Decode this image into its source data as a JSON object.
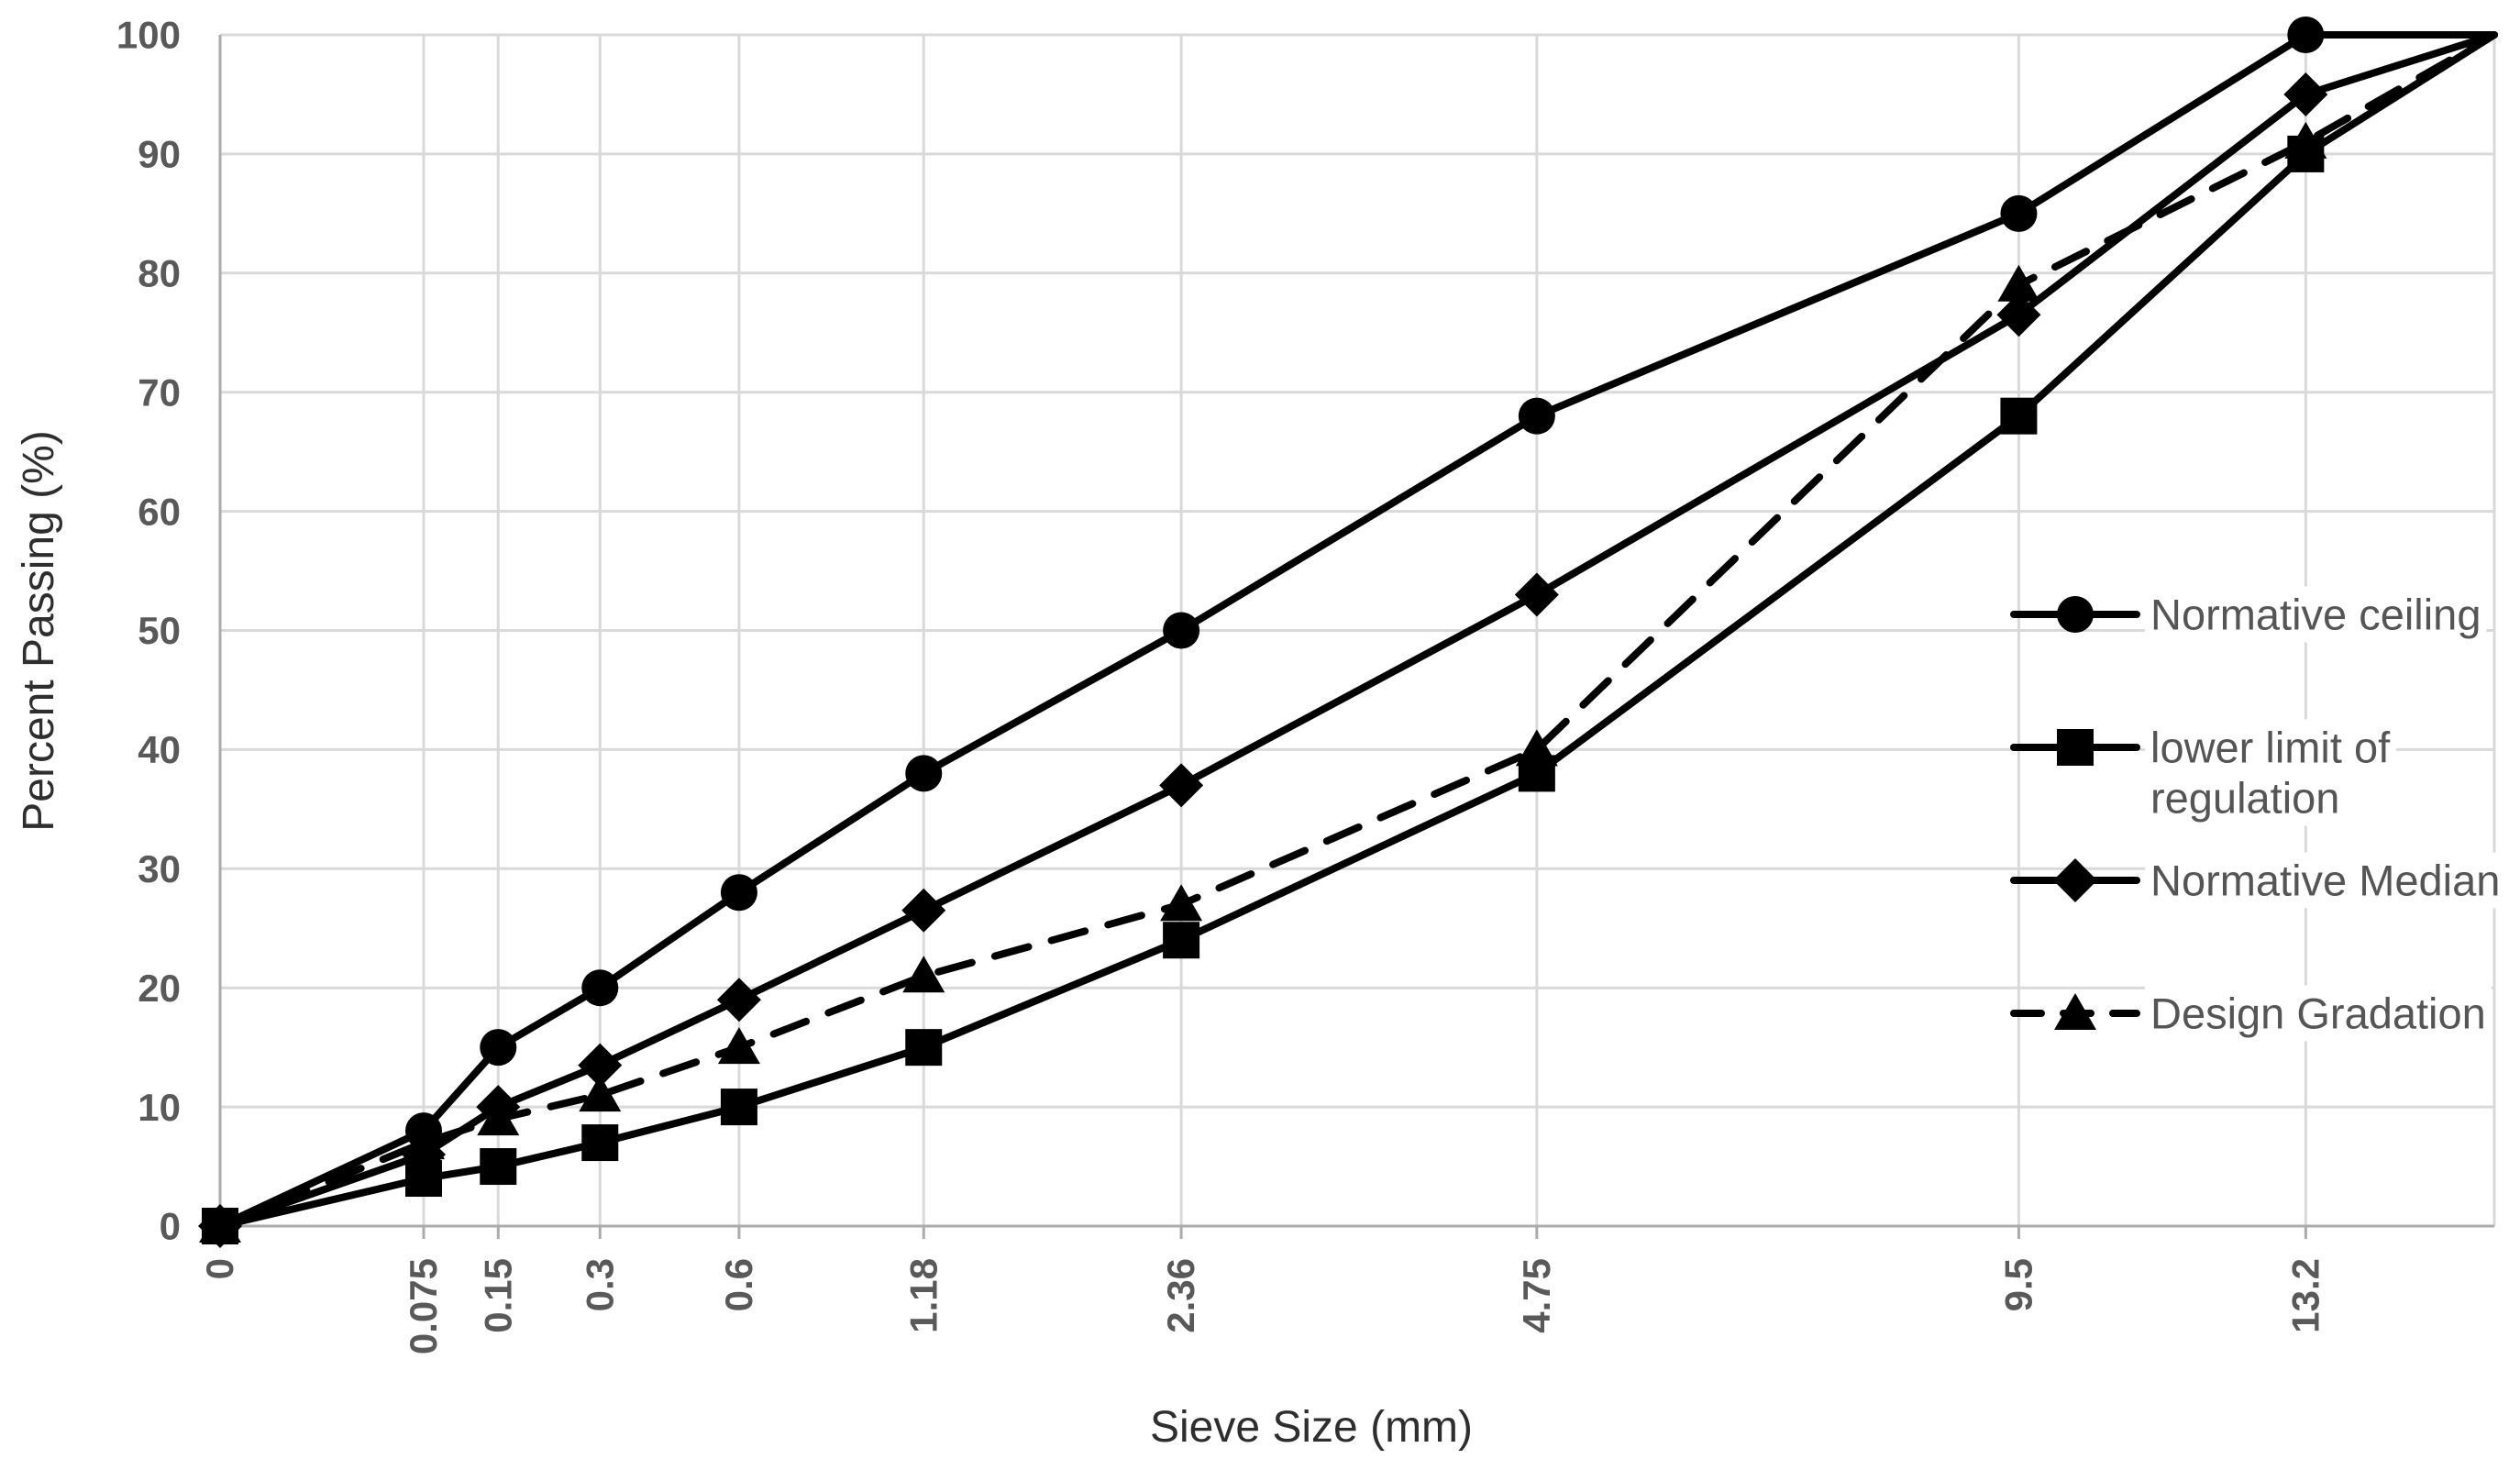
{
  "chart_data": {
    "type": "line",
    "title": "",
    "xlabel": "Sieve Size (mm)",
    "ylabel": "Percent Passing (%)",
    "x_axis": {
      "scale": "power-0.45 gradation scale",
      "tick_values_mm": [
        0,
        0.075,
        0.15,
        0.3,
        0.6,
        1.18,
        2.36,
        4.75,
        9.5,
        13.2
      ],
      "tick_labels": [
        "0",
        "0.075",
        "0.15",
        "0.3",
        "0.6",
        "1.18",
        "2.36",
        "4.75",
        "9.5",
        "13.2"
      ],
      "max_mm": 16,
      "label_rotation_deg": -90
    },
    "y_axis": {
      "min": 0,
      "max": 100,
      "tick_step": 10,
      "tick_labels": [
        "0",
        "10",
        "20",
        "30",
        "40",
        "50",
        "60",
        "70",
        "80",
        "90",
        "100"
      ]
    },
    "grid": true,
    "legend_position": "inside-right",
    "series": [
      {
        "name": "Normative ceiling",
        "legend_lines": [
          "Normative ceiling"
        ],
        "marker": "circle",
        "line": "solid",
        "x_mm": [
          0,
          0.075,
          0.15,
          0.3,
          0.6,
          1.18,
          2.36,
          4.75,
          9.5,
          13.2,
          16
        ],
        "values": [
          0,
          8,
          15,
          20,
          28,
          38,
          50,
          68,
          85,
          100,
          100
        ]
      },
      {
        "name": "lower limit of regulation",
        "legend_lines": [
          "lower limit of",
          "regulation"
        ],
        "marker": "square",
        "line": "solid",
        "x_mm": [
          0,
          0.075,
          0.15,
          0.3,
          0.6,
          1.18,
          2.36,
          4.75,
          9.5,
          13.2,
          16
        ],
        "values": [
          0,
          4,
          5,
          7,
          10,
          15,
          24,
          38,
          68,
          90,
          100
        ]
      },
      {
        "name": "Normative Median",
        "legend_lines": [
          "Normative Median"
        ],
        "marker": "diamond",
        "line": "solid",
        "x_mm": [
          0,
          0.075,
          0.15,
          0.3,
          0.6,
          1.18,
          2.36,
          4.75,
          9.5,
          13.2,
          16
        ],
        "values": [
          0,
          6,
          10,
          13.5,
          19,
          26.5,
          37,
          53,
          76.5,
          95,
          100
        ]
      },
      {
        "name": "Design Gradation",
        "legend_lines": [
          "Design Gradation"
        ],
        "marker": "triangle",
        "line": "dashed",
        "x_mm": [
          0,
          0.075,
          0.15,
          0.3,
          0.6,
          1.18,
          2.36,
          4.75,
          9.5,
          13.2,
          16
        ],
        "values": [
          0,
          7,
          9,
          11,
          15,
          21,
          27,
          40,
          79,
          91,
          100
        ]
      }
    ],
    "colors": {
      "series_color": "#000000",
      "gridline_color": "#d9d9d9",
      "axis_color": "#ababab",
      "tick_label_color": "#595959",
      "axis_title_color": "#2e2e2e",
      "legend_text_color": "#555555",
      "background": "#ffffff"
    }
  }
}
